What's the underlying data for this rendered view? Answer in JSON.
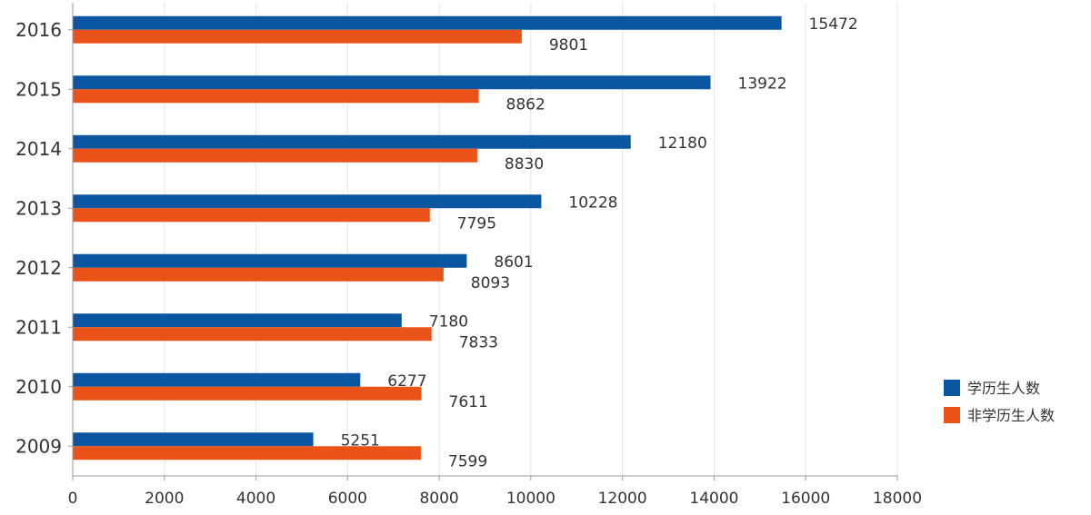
{
  "chart_data": {
    "type": "bar",
    "orientation": "horizontal",
    "categories": [
      "2009",
      "2010",
      "2011",
      "2012",
      "2013",
      "2014",
      "2015",
      "2016"
    ],
    "series": [
      {
        "name": "学历生人数",
        "color": "#0a56a0",
        "values": [
          5251,
          6277,
          7180,
          8601,
          10228,
          12180,
          13922,
          15472
        ]
      },
      {
        "name": "非学历生人数",
        "color": "#e9531a",
        "values": [
          7599,
          7611,
          7833,
          8093,
          7795,
          8830,
          8862,
          9801
        ]
      }
    ],
    "xlim": [
      0,
      18000
    ],
    "xticks": [
      "0",
      "2000",
      "4000",
      "6000",
      "8000",
      "10000",
      "12000",
      "14000",
      "16000",
      "18000"
    ],
    "grid": "vertical",
    "legend_position": "right",
    "data_labels": true
  }
}
